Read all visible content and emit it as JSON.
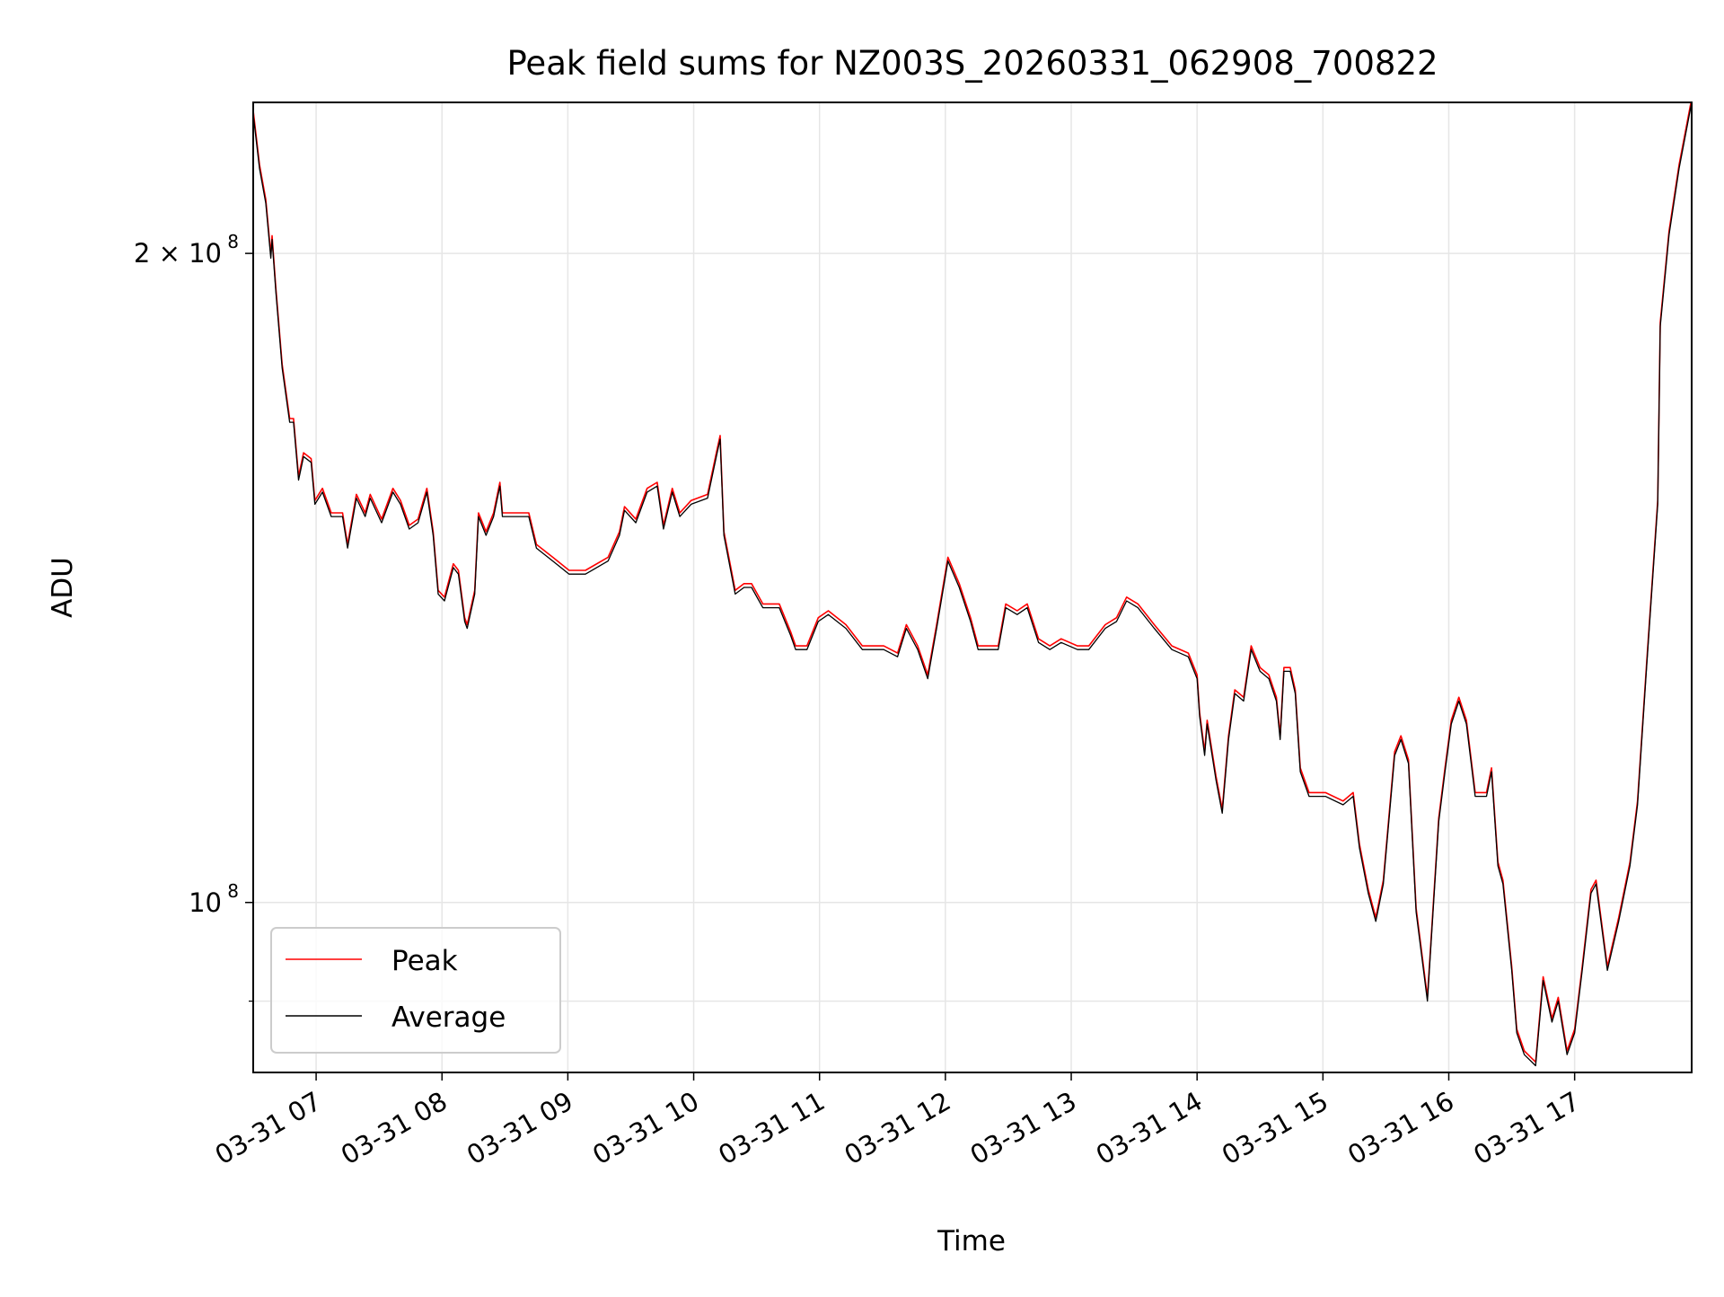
{
  "chart_data": {
    "type": "line",
    "title": "Peak field sums for NZ003S_20260331_062908_700822",
    "xlabel": "Time",
    "ylabel": "ADU",
    "yscale": "log",
    "x_unit": "hours of day 2026-03-31",
    "xlim": [
      6.5,
      17.93
    ],
    "ylim": [
      83400000.0,
      235000000.0
    ],
    "grid": true,
    "legend_position": "lower-left",
    "x_ticks": [
      {
        "value": 7,
        "label": "03-31 07"
      },
      {
        "value": 8,
        "label": "03-31 08"
      },
      {
        "value": 9,
        "label": "03-31 09"
      },
      {
        "value": 10,
        "label": "03-31 10"
      },
      {
        "value": 11,
        "label": "03-31 11"
      },
      {
        "value": 12,
        "label": "03-31 12"
      },
      {
        "value": 13,
        "label": "03-31 13"
      },
      {
        "value": 14,
        "label": "03-31 14"
      },
      {
        "value": 15,
        "label": "03-31 15"
      },
      {
        "value": 16,
        "label": "03-31 16"
      },
      {
        "value": 17,
        "label": "03-31 17"
      }
    ],
    "y_ticks": [
      {
        "value": 200000000.0,
        "label_base": "2 × 10",
        "label_exp": "8"
      },
      {
        "value": 100000000.0,
        "label_base": "10",
        "label_exp": "8"
      }
    ],
    "y_minor_ticks": [
      90000000.0
    ],
    "x": [
      6.5,
      6.55,
      6.6,
      6.64,
      6.65,
      6.68,
      6.73,
      6.79,
      6.82,
      6.86,
      6.9,
      6.96,
      6.99,
      7.05,
      7.12,
      7.21,
      7.25,
      7.32,
      7.39,
      7.43,
      7.52,
      7.61,
      7.67,
      7.74,
      7.81,
      7.88,
      7.93,
      7.97,
      8.02,
      8.09,
      8.13,
      8.18,
      8.2,
      8.26,
      8.29,
      8.35,
      8.41,
      8.46,
      8.48,
      8.57,
      8.69,
      8.75,
      8.88,
      9.01,
      9.14,
      9.32,
      9.41,
      9.45,
      9.54,
      9.63,
      9.71,
      9.76,
      9.83,
      9.89,
      9.98,
      10.11,
      10.18,
      10.21,
      10.24,
      10.33,
      10.4,
      10.46,
      10.55,
      10.68,
      10.77,
      10.81,
      10.9,
      10.99,
      11.07,
      11.21,
      11.34,
      11.51,
      11.62,
      11.69,
      11.78,
      11.86,
      11.93,
      12.02,
      12.11,
      12.2,
      12.26,
      12.33,
      12.42,
      12.48,
      12.57,
      12.65,
      12.74,
      12.83,
      12.92,
      13.05,
      13.14,
      13.27,
      13.36,
      13.44,
      13.53,
      13.66,
      13.8,
      13.93,
      14.0,
      14.02,
      14.06,
      14.08,
      14.15,
      14.2,
      14.25,
      14.3,
      14.37,
      14.43,
      14.5,
      14.57,
      14.63,
      14.66,
      14.69,
      14.74,
      14.78,
      14.82,
      14.89,
      15.02,
      15.16,
      15.24,
      15.29,
      15.36,
      15.42,
      15.48,
      15.57,
      15.62,
      15.68,
      15.74,
      15.83,
      15.92,
      15.97,
      16.02,
      16.08,
      16.14,
      16.21,
      16.3,
      16.34,
      16.39,
      16.43,
      16.5,
      16.54,
      16.6,
      16.69,
      16.75,
      16.82,
      16.87,
      16.94,
      17.0,
      17.06,
      17.13,
      17.17,
      17.26,
      17.35,
      17.44,
      17.5,
      17.57,
      17.66,
      17.68,
      17.75,
      17.83,
      17.93
    ],
    "series": [
      {
        "name": "Peak",
        "color": "#ff0000",
        "values_e8": [
          2.32,
          2.19,
          2.11,
          1.99,
          2.03,
          1.92,
          1.77,
          1.67,
          1.67,
          1.57,
          1.61,
          1.6,
          1.53,
          1.55,
          1.51,
          1.51,
          1.46,
          1.54,
          1.51,
          1.54,
          1.5,
          1.55,
          1.53,
          1.49,
          1.5,
          1.55,
          1.48,
          1.39,
          1.38,
          1.43,
          1.42,
          1.35,
          1.34,
          1.39,
          1.51,
          1.48,
          1.51,
          1.56,
          1.51,
          1.51,
          1.51,
          1.46,
          1.44,
          1.42,
          1.42,
          1.44,
          1.48,
          1.52,
          1.5,
          1.55,
          1.56,
          1.49,
          1.55,
          1.51,
          1.53,
          1.54,
          1.61,
          1.64,
          1.48,
          1.39,
          1.4,
          1.4,
          1.37,
          1.37,
          1.33,
          1.31,
          1.31,
          1.35,
          1.36,
          1.34,
          1.31,
          1.31,
          1.3,
          1.34,
          1.31,
          1.27,
          1.34,
          1.44,
          1.4,
          1.35,
          1.31,
          1.31,
          1.31,
          1.37,
          1.36,
          1.37,
          1.32,
          1.31,
          1.32,
          1.31,
          1.31,
          1.34,
          1.35,
          1.38,
          1.37,
          1.34,
          1.31,
          1.3,
          1.27,
          1.22,
          1.17,
          1.21,
          1.14,
          1.1,
          1.19,
          1.25,
          1.24,
          1.31,
          1.28,
          1.27,
          1.24,
          1.19,
          1.28,
          1.28,
          1.25,
          1.15,
          1.12,
          1.12,
          1.11,
          1.12,
          1.06,
          1.01,
          0.98,
          1.02,
          1.17,
          1.19,
          1.16,
          0.99,
          0.9,
          1.09,
          1.15,
          1.21,
          1.24,
          1.21,
          1.12,
          1.12,
          1.15,
          1.04,
          1.02,
          0.93,
          0.87,
          0.85,
          0.84,
          0.92,
          0.88,
          0.9,
          0.85,
          0.87,
          0.93,
          1.01,
          1.02,
          0.93,
          0.98,
          1.04,
          1.11,
          1.28,
          1.53,
          1.85,
          2.04,
          2.19,
          2.35
        ]
      },
      {
        "name": "Average",
        "color": "#000000",
        "values_e8": [
          2.32,
          2.19,
          2.11,
          1.99,
          2.03,
          1.92,
          1.77,
          1.67,
          1.67,
          1.57,
          1.61,
          1.6,
          1.53,
          1.55,
          1.51,
          1.51,
          1.46,
          1.54,
          1.51,
          1.54,
          1.5,
          1.55,
          1.53,
          1.49,
          1.5,
          1.55,
          1.48,
          1.39,
          1.38,
          1.43,
          1.42,
          1.35,
          1.34,
          1.39,
          1.51,
          1.48,
          1.51,
          1.56,
          1.51,
          1.51,
          1.51,
          1.46,
          1.44,
          1.42,
          1.42,
          1.44,
          1.48,
          1.52,
          1.5,
          1.55,
          1.56,
          1.49,
          1.55,
          1.51,
          1.53,
          1.54,
          1.61,
          1.64,
          1.48,
          1.39,
          1.4,
          1.4,
          1.37,
          1.37,
          1.33,
          1.31,
          1.31,
          1.35,
          1.36,
          1.34,
          1.31,
          1.31,
          1.3,
          1.34,
          1.31,
          1.27,
          1.34,
          1.44,
          1.4,
          1.35,
          1.31,
          1.31,
          1.31,
          1.37,
          1.36,
          1.37,
          1.32,
          1.31,
          1.32,
          1.31,
          1.31,
          1.34,
          1.35,
          1.38,
          1.37,
          1.34,
          1.31,
          1.3,
          1.27,
          1.22,
          1.17,
          1.21,
          1.14,
          1.1,
          1.19,
          1.25,
          1.24,
          1.31,
          1.28,
          1.27,
          1.24,
          1.19,
          1.28,
          1.28,
          1.25,
          1.15,
          1.12,
          1.12,
          1.11,
          1.12,
          1.06,
          1.01,
          0.98,
          1.02,
          1.17,
          1.19,
          1.16,
          0.99,
          0.9,
          1.09,
          1.15,
          1.21,
          1.24,
          1.21,
          1.12,
          1.12,
          1.15,
          1.04,
          1.02,
          0.93,
          0.87,
          0.85,
          0.84,
          0.92,
          0.88,
          0.9,
          0.85,
          0.87,
          0.93,
          1.01,
          1.02,
          0.93,
          0.98,
          1.04,
          1.11,
          1.28,
          1.53,
          1.85,
          2.04,
          2.19,
          2.35
        ]
      }
    ]
  }
}
